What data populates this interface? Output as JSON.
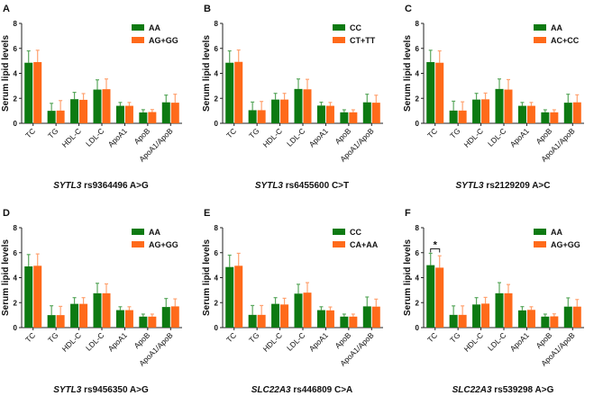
{
  "colors": {
    "g1": "#0d7a12",
    "g2": "#ff6a1a",
    "g1err": "#5aa85e",
    "g2err": "#ffa270"
  },
  "chart_data": [
    {
      "type": "bar",
      "letter": "A",
      "gene": "SYTL3",
      "snp": "rs9364496 A>G",
      "ylabel": "Serum lipid levels",
      "ylim": [
        0,
        8
      ],
      "yticks": [
        0,
        2,
        4,
        6,
        8
      ],
      "categories": [
        "TC",
        "TG",
        "HDL-C",
        "LDL-C",
        "ApoA1",
        "ApoB",
        "ApoA1/ApoB"
      ],
      "legend": "top-right",
      "series": [
        {
          "name": "AA",
          "values": [
            4.85,
            1.0,
            1.93,
            2.7,
            1.4,
            0.87,
            1.68
          ],
          "sd": [
            0.95,
            0.6,
            0.55,
            0.78,
            0.27,
            0.22,
            0.58
          ]
        },
        {
          "name": "AG+GG",
          "values": [
            4.9,
            1.02,
            1.88,
            2.73,
            1.4,
            0.9,
            1.65
          ],
          "sd": [
            0.95,
            0.8,
            0.5,
            0.82,
            0.27,
            0.2,
            0.68
          ]
        }
      ],
      "sig": []
    },
    {
      "type": "bar",
      "letter": "B",
      "gene": "SYTL3",
      "snp": "rs6455600 C>T",
      "ylabel": "Serum lipid levels",
      "ylim": [
        0,
        8
      ],
      "yticks": [
        0,
        2,
        4,
        6,
        8
      ],
      "categories": [
        "TC",
        "TG",
        "HDL-C",
        "LDL-C",
        "ApoA1",
        "ApoB",
        "ApoA1/ApoB"
      ],
      "legend": "top-right",
      "series": [
        {
          "name": "CC",
          "values": [
            4.85,
            1.05,
            1.9,
            2.75,
            1.42,
            0.88,
            1.68
          ],
          "sd": [
            0.95,
            0.65,
            0.5,
            0.8,
            0.27,
            0.2,
            0.65
          ]
        },
        {
          "name": "CT+TT",
          "values": [
            4.92,
            1.05,
            1.9,
            2.72,
            1.4,
            0.88,
            1.65
          ],
          "sd": [
            0.95,
            0.7,
            0.5,
            0.8,
            0.27,
            0.2,
            0.6
          ]
        }
      ],
      "sig": []
    },
    {
      "type": "bar",
      "letter": "C",
      "gene": "SYTL3",
      "snp": "rs2129209 A>C",
      "ylabel": "Serum lipid levels",
      "ylim": [
        0,
        8
      ],
      "yticks": [
        0,
        2,
        4,
        6,
        8
      ],
      "categories": [
        "TC",
        "TG",
        "HDL-C",
        "LDL-C",
        "ApoA1",
        "ApoB",
        "ApoA1/ApoB"
      ],
      "legend": "top-right",
      "series": [
        {
          "name": "AA",
          "values": [
            4.9,
            1.02,
            1.9,
            2.75,
            1.4,
            0.88,
            1.65
          ],
          "sd": [
            0.95,
            0.75,
            0.5,
            0.8,
            0.27,
            0.2,
            0.68
          ]
        },
        {
          "name": "AC+CC",
          "values": [
            4.85,
            1.02,
            1.92,
            2.7,
            1.4,
            0.88,
            1.68
          ],
          "sd": [
            0.95,
            0.7,
            0.5,
            0.8,
            0.27,
            0.2,
            0.6
          ]
        }
      ],
      "sig": []
    },
    {
      "type": "bar",
      "letter": "D",
      "gene": "SYTL3",
      "snp": "rs9456350 A>G",
      "ylabel": "Serum lipid levels",
      "ylim": [
        0,
        8
      ],
      "yticks": [
        0,
        2,
        4,
        6,
        8
      ],
      "categories": [
        "TC",
        "TG",
        "HDL-C",
        "LDL-C",
        "ApoA1",
        "ApoB",
        "ApoA1/ApoB"
      ],
      "legend": "top-right",
      "series": [
        {
          "name": "AA",
          "values": [
            4.9,
            1.0,
            1.9,
            2.75,
            1.4,
            0.88,
            1.65
          ],
          "sd": [
            0.95,
            0.75,
            0.5,
            0.8,
            0.27,
            0.2,
            0.68
          ]
        },
        {
          "name": "AG+GG",
          "values": [
            4.95,
            1.0,
            1.9,
            2.75,
            1.4,
            0.88,
            1.7
          ],
          "sd": [
            0.95,
            0.7,
            0.5,
            0.75,
            0.27,
            0.2,
            0.6
          ]
        }
      ],
      "sig": []
    },
    {
      "type": "bar",
      "letter": "E",
      "gene": "SLC22A3",
      "snp": "rs446809 C>A",
      "ylabel": "Serum lipid levels",
      "ylim": [
        0,
        8
      ],
      "yticks": [
        0,
        2,
        4,
        6,
        8
      ],
      "categories": [
        "TC",
        "TG",
        "HDL-C",
        "LDL-C",
        "ApoA1",
        "ApoB",
        "ApoA1/ApoB"
      ],
      "legend": "top-right",
      "series": [
        {
          "name": "CC",
          "values": [
            4.85,
            1.02,
            1.9,
            2.72,
            1.4,
            0.88,
            1.7
          ],
          "sd": [
            0.95,
            0.75,
            0.5,
            0.75,
            0.27,
            0.2,
            0.75
          ]
        },
        {
          "name": "CA+AA",
          "values": [
            4.95,
            1.02,
            1.85,
            2.8,
            1.38,
            0.88,
            1.68
          ],
          "sd": [
            1.0,
            0.75,
            0.5,
            0.8,
            0.27,
            0.2,
            0.6
          ]
        }
      ],
      "sig": []
    },
    {
      "type": "bar",
      "letter": "F",
      "gene": "SLC22A3",
      "snp": "rs539298 A>G",
      "ylabel": "Serum lipid levels",
      "ylim": [
        0,
        8
      ],
      "yticks": [
        0,
        2,
        4,
        6,
        8
      ],
      "categories": [
        "TC",
        "TG",
        "HDL-C",
        "LDL-C",
        "ApoA1",
        "ApoB",
        "ApoA1/ApoB"
      ],
      "legend": "top-right",
      "series": [
        {
          "name": "AA",
          "values": [
            5.0,
            1.02,
            1.85,
            2.75,
            1.38,
            0.88,
            1.68
          ],
          "sd": [
            0.95,
            0.72,
            0.55,
            0.85,
            0.3,
            0.2,
            0.7
          ]
        },
        {
          "name": "AG+GG",
          "values": [
            4.8,
            1.02,
            1.92,
            2.75,
            1.42,
            0.9,
            1.68
          ],
          "sd": [
            0.95,
            0.72,
            0.5,
            0.7,
            0.25,
            0.2,
            0.57
          ]
        }
      ],
      "sig": [
        {
          "category": "TC",
          "label": "*"
        }
      ]
    }
  ]
}
